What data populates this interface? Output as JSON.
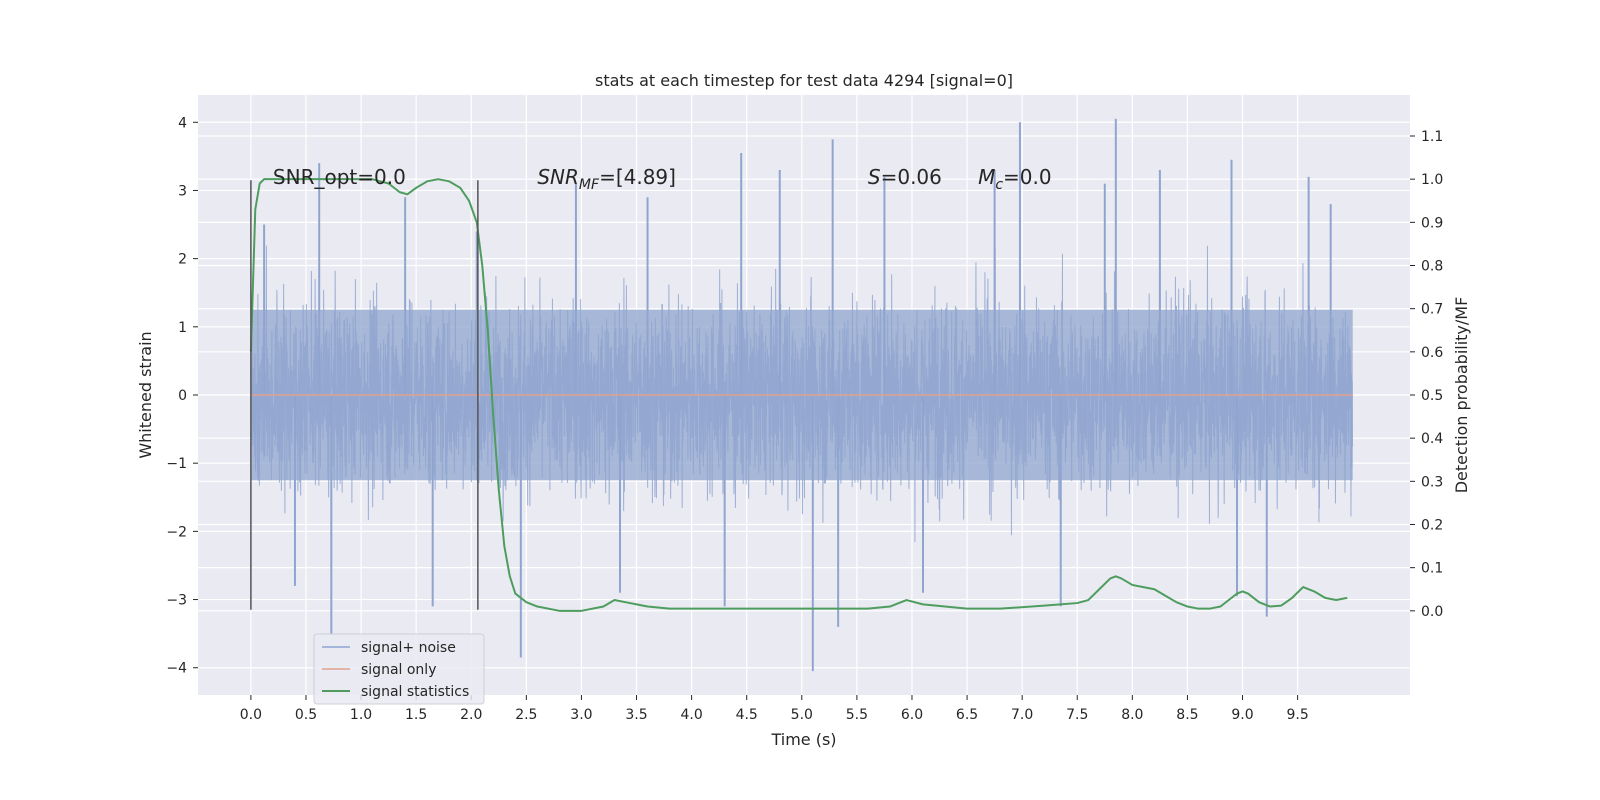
{
  "chart_data": {
    "type": "line",
    "title": "stats at each timestep for test data 4294 [signal=0]",
    "xlabel": "Time (s)",
    "ylabel": "Whitened strain",
    "y2label": "Detection probability/MF",
    "xlim": [
      -0.48,
      10.52
    ],
    "ylim": [
      -4.4,
      4.4
    ],
    "y2lim": [
      -0.195,
      1.195
    ],
    "xticks": [
      0.0,
      0.5,
      1.0,
      1.5,
      2.0,
      2.5,
      3.0,
      3.5,
      4.0,
      4.5,
      5.0,
      5.5,
      6.0,
      6.5,
      7.0,
      7.5,
      8.0,
      8.5,
      9.0,
      9.5
    ],
    "xtick_labels": [
      "0.0",
      "0.5",
      "1.0",
      "1.5",
      "2.0",
      "2.5",
      "3.0",
      "3.5",
      "4.0",
      "4.5",
      "5.0",
      "5.5",
      "6.0",
      "6.5",
      "7.0",
      "7.5",
      "8.0",
      "8.5",
      "9.0",
      "9.5"
    ],
    "yticks": [
      -4,
      -3,
      -2,
      -1,
      0,
      1,
      2,
      3,
      4
    ],
    "ytick_labels": [
      "−4",
      "−3",
      "−2",
      "−1",
      "0",
      "1",
      "2",
      "3",
      "4"
    ],
    "y2ticks": [
      0.0,
      0.1,
      0.2,
      0.3,
      0.4,
      0.5,
      0.6,
      0.7,
      0.8,
      0.9,
      1.0,
      1.1
    ],
    "y2tick_labels": [
      "0.0",
      "0.1",
      "0.2",
      "0.3",
      "0.4",
      "0.5",
      "0.6",
      "0.7",
      "0.8",
      "0.9",
      "1.0",
      "1.1"
    ],
    "grid": true,
    "legend_placement": "lower-left",
    "vlines": [
      {
        "x": 0.0,
        "ymin": -3.15,
        "ymax": 3.15
      },
      {
        "x": 2.06,
        "ymin": -3.15,
        "ymax": 3.15
      }
    ],
    "annotations": [
      {
        "x": 0.2,
        "y": 3.2,
        "text": "SNR_opt=0.0",
        "math": false
      },
      {
        "x": 2.6,
        "y": 3.2,
        "text_parts": [
          [
            "SNR",
            "i"
          ],
          [
            "MF",
            "sub-i"
          ],
          [
            "=[4.89]",
            ""
          ]
        ]
      },
      {
        "x": 5.6,
        "y": 3.2,
        "text_parts": [
          [
            "S",
            "i"
          ],
          [
            "=0.06",
            ""
          ]
        ]
      },
      {
        "x": 6.6,
        "y": 3.2,
        "text_parts": [
          [
            "M",
            "i"
          ],
          [
            "c",
            "sub-i"
          ],
          [
            "=0.0",
            ""
          ]
        ]
      }
    ],
    "series": [
      {
        "name": "signal+ noise",
        "axis": "left",
        "color": "#8fa5cf",
        "style": "noise",
        "x_range": [
          0.0,
          10.0
        ],
        "band": [
          -1.25,
          1.25
        ],
        "spikes": [
          {
            "x": 0.62,
            "y": 3.4
          },
          {
            "x": 0.73,
            "y": -3.5
          },
          {
            "x": 0.12,
            "y": 2.5
          },
          {
            "x": 0.4,
            "y": -2.8
          },
          {
            "x": 1.4,
            "y": 2.9
          },
          {
            "x": 1.65,
            "y": -3.1
          },
          {
            "x": 2.05,
            "y": 2.4
          },
          {
            "x": 2.45,
            "y": -3.85
          },
          {
            "x": 2.95,
            "y": 3.1
          },
          {
            "x": 3.35,
            "y": -2.9
          },
          {
            "x": 3.6,
            "y": 2.9
          },
          {
            "x": 4.3,
            "y": -3.1
          },
          {
            "x": 4.45,
            "y": 3.55
          },
          {
            "x": 4.8,
            "y": 3.3
          },
          {
            "x": 5.1,
            "y": -4.05
          },
          {
            "x": 5.28,
            "y": 3.75
          },
          {
            "x": 5.33,
            "y": -3.4
          },
          {
            "x": 5.75,
            "y": 3.2
          },
          {
            "x": 6.1,
            "y": -2.9
          },
          {
            "x": 6.75,
            "y": 3.3
          },
          {
            "x": 6.98,
            "y": 4.0
          },
          {
            "x": 7.35,
            "y": -3.1
          },
          {
            "x": 7.75,
            "y": 3.1
          },
          {
            "x": 7.85,
            "y": 4.05
          },
          {
            "x": 8.25,
            "y": 3.3
          },
          {
            "x": 8.9,
            "y": 3.45
          },
          {
            "x": 8.95,
            "y": -2.95
          },
          {
            "x": 9.22,
            "y": -3.25
          },
          {
            "x": 9.6,
            "y": 3.2
          },
          {
            "x": 9.8,
            "y": 2.8
          }
        ]
      },
      {
        "name": "signal only",
        "axis": "left",
        "color": "#e1a08d",
        "style": "line",
        "x": [
          0.0,
          10.0
        ],
        "y": [
          0.0,
          0.0
        ]
      },
      {
        "name": "signal statistics",
        "axis": "right",
        "color": "#4e9d5e",
        "style": "line",
        "x": [
          0.0,
          0.04,
          0.08,
          0.12,
          0.2,
          0.3,
          0.5,
          0.7,
          0.9,
          1.1,
          1.25,
          1.35,
          1.42,
          1.5,
          1.6,
          1.7,
          1.8,
          1.9,
          1.98,
          2.05,
          2.1,
          2.15,
          2.2,
          2.25,
          2.3,
          2.35,
          2.4,
          2.5,
          2.6,
          2.8,
          3.0,
          3.2,
          3.3,
          3.4,
          3.6,
          3.8,
          4.0,
          4.5,
          5.0,
          5.3,
          5.6,
          5.8,
          5.95,
          6.1,
          6.5,
          6.8,
          7.2,
          7.5,
          7.6,
          7.7,
          7.8,
          7.85,
          7.9,
          8.0,
          8.1,
          8.2,
          8.3,
          8.4,
          8.5,
          8.6,
          8.7,
          8.8,
          8.9,
          8.95,
          9.0,
          9.05,
          9.15,
          9.25,
          9.35,
          9.45,
          9.55,
          9.65,
          9.75,
          9.85,
          9.95
        ],
        "y": [
          0.6,
          0.93,
          0.99,
          1.0,
          1.0,
          1.0,
          1.0,
          1.0,
          1.0,
          1.0,
          0.99,
          0.97,
          0.965,
          0.98,
          0.995,
          1.0,
          0.995,
          0.98,
          0.95,
          0.9,
          0.8,
          0.65,
          0.45,
          0.28,
          0.15,
          0.08,
          0.04,
          0.02,
          0.01,
          0.0,
          0.0,
          0.01,
          0.025,
          0.02,
          0.01,
          0.005,
          0.005,
          0.005,
          0.005,
          0.005,
          0.005,
          0.01,
          0.025,
          0.015,
          0.005,
          0.005,
          0.012,
          0.018,
          0.025,
          0.05,
          0.075,
          0.08,
          0.075,
          0.06,
          0.055,
          0.05,
          0.035,
          0.02,
          0.01,
          0.005,
          0.005,
          0.01,
          0.03,
          0.04,
          0.045,
          0.04,
          0.02,
          0.01,
          0.012,
          0.03,
          0.055,
          0.045,
          0.03,
          0.025,
          0.03
        ]
      }
    ]
  }
}
